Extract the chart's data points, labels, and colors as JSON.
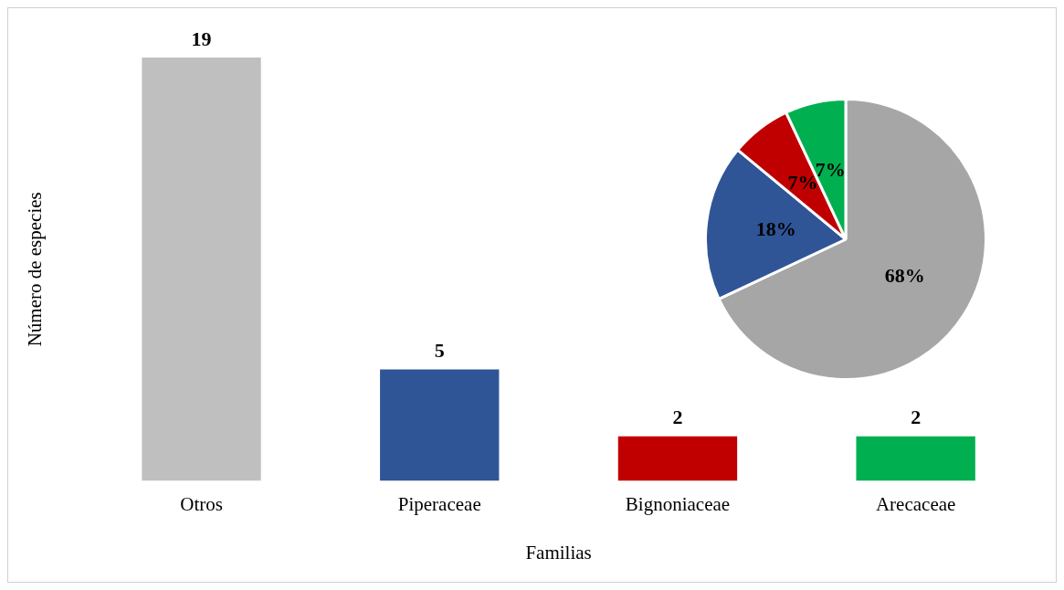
{
  "chart_data": [
    {
      "type": "bar",
      "xlabel": "Familias",
      "ylabel": "Número de especies",
      "categories": [
        "Otros",
        "Piperaceae",
        "Bignoniaceae",
        "Arecaceae"
      ],
      "values": [
        19,
        5,
        2,
        2
      ],
      "colors": [
        "#bfbfbf",
        "#2f5597",
        "#c00000",
        "#00b050"
      ],
      "data_labels": true,
      "grid": false,
      "legend": false
    },
    {
      "type": "pie",
      "categories": [
        null,
        null,
        null,
        null
      ],
      "values": [
        68,
        18,
        7,
        7
      ],
      "colors": [
        "#a6a6a6",
        "#2f5597",
        "#c00000",
        "#00b050"
      ],
      "value_labels": [
        "68%",
        "18%",
        "7%",
        "7%"
      ],
      "legend": false
    }
  ]
}
